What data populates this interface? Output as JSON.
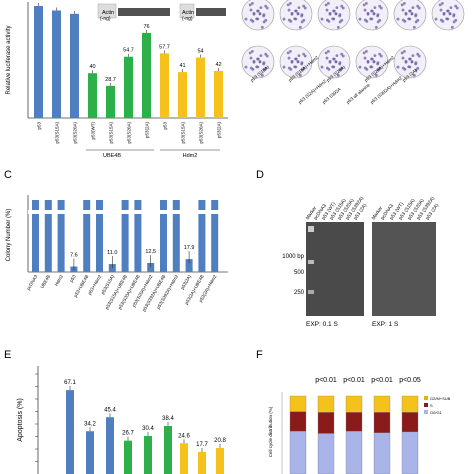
{
  "panel_letters": {
    "c": "C",
    "d": "D",
    "e": "E",
    "f": "F"
  },
  "panel_a": {
    "ylabel": "Relative luciferase activity",
    "blot_labels": [
      "Actin",
      "Actin"
    ],
    "blot_tags": [
      "(-ng)",
      "(-ng)"
    ],
    "group_labels": [
      "UBE4B",
      "Hdm2"
    ],
    "value_labels": [
      "40",
      "28.7",
      "54.7",
      "76",
      "57.7",
      "41",
      "54",
      "42"
    ]
  },
  "panel_b": {
    "captions": [
      "p53 (S15A)",
      "p53 (S15A)+Hdm2",
      "p53 (S20A)",
      "p53 (S20A)+Hdm2",
      "p53 (2A)",
      "p53 (S2A)+Hdm2",
      "p53 S392A",
      "p53 all alanine",
      "p53 (S392A)+Hdm2"
    ]
  },
  "panel_c": {
    "ylabel": "Colony Number (%)"
  },
  "panel_d": {
    "marker_labels": [
      "1000 bp",
      "500",
      "250"
    ],
    "exp_labels": [
      "EXP: 0.1 S",
      "EXP: 1 S"
    ],
    "lane_labels_left": [
      "Marker",
      "pcDNA3",
      "p53 (WT)",
      "p53 (S15A)",
      "p53 (S20A)",
      "p53 (S392A)",
      "p53 (2A)"
    ],
    "lane_labels_right": [
      "Marker",
      "pcDNA3",
      "p53 (WT)",
      "p53 (S15A)",
      "p53 (S20A)",
      "p53 (S392A)",
      "p53 (2A)"
    ]
  },
  "panel_e": {
    "ylabel": "Apoptosis (%)"
  },
  "panel_f": {
    "ylabel": "Cell cycle distribution (%)",
    "pvalues": [
      "p<0.01",
      "p<0.01",
      "p<0.01",
      "p<0.05"
    ],
    "legend": [
      "G2/M+SUB",
      "S",
      "G0/G1"
    ]
  },
  "colors": {
    "blue": "#4f7fc0",
    "green": "#2db04a",
    "yellow": "#f5c21b",
    "red": "#8b1a1a",
    "lavender": "#a9b4e8",
    "dark_yellow": "#e0b21a"
  },
  "chart_data": [
    {
      "panel": "A",
      "type": "bar",
      "ylabel": "Relative luciferase activity",
      "categories": [
        "p53",
        "p53(S15A)",
        "p53(S20A)",
        "p53(WT)",
        "p53(S15A)",
        "p53(S20A)",
        "p53(2A)",
        "p53",
        "p53(S15A)",
        "p53(S20A)",
        "p53(2A)"
      ],
      "values": [
        100,
        96,
        93,
        40,
        28.7,
        54.7,
        76,
        57.7,
        41,
        54,
        42
      ],
      "colors": [
        "blue",
        "blue",
        "blue",
        "green",
        "green",
        "green",
        "green",
        "yellow",
        "yellow",
        "yellow",
        "yellow"
      ],
      "data_labels": [
        "",
        "",
        "",
        "40",
        "28.7",
        "54.7",
        "76",
        "57.7",
        "41",
        "54",
        "42"
      ],
      "ylim": [
        0,
        100
      ]
    },
    {
      "panel": "C",
      "type": "bar",
      "ylabel": "Colony Number (%)",
      "categories": [
        "pcDNA3",
        "UBE4B",
        "Hdm2",
        "p53",
        "p53+UBE4B",
        "p53+Hdm2",
        "p53(S15A)",
        "p53(S15A)+UBE4B",
        "p53(S20A)+UBE4B",
        "p53(S20A)+Hdm2",
        "p53(S392A)+UBE4B",
        "p53(S392A)+Hdm2",
        "p53(2A)",
        "p53(2A)+UBE4B",
        "p53(2A)+Hdm2"
      ],
      "values": [
        100,
        100,
        100,
        7.6,
        100,
        100,
        11.0,
        100,
        100,
        12.5,
        100,
        100,
        17.9,
        100,
        100
      ],
      "data_labels": [
        "",
        "",
        "",
        "7.6",
        "",
        "",
        "11.0",
        "",
        "",
        "12.5",
        "",
        "",
        "17.9",
        "",
        ""
      ],
      "ylim": [
        0,
        100
      ]
    },
    {
      "panel": "E",
      "type": "bar",
      "ylabel": "Apoptosis (%)",
      "values": [
        67.1,
        34.2,
        45.4,
        26.7,
        30.4,
        38.4,
        24.6,
        17.7,
        20.8
      ],
      "colors": [
        "blue",
        "blue",
        "blue",
        "green",
        "green",
        "green",
        "yellow",
        "yellow",
        "yellow"
      ],
      "data_labels": [
        "67.1",
        "34.2",
        "45.4",
        "26.7",
        "30.4",
        "38.4",
        "24.6",
        "17.7",
        "20.8"
      ],
      "ylim": [
        0,
        80
      ]
    },
    {
      "panel": "F",
      "type": "bar",
      "stacked": true,
      "ylabel": "Cell cycle distribution (%)",
      "series": [
        {
          "name": "G0/G1",
          "values": [
            55,
            52,
            55,
            53,
            54
          ]
        },
        {
          "name": "S",
          "values": [
            25,
            27,
            24,
            26,
            25
          ]
        },
        {
          "name": "G2/M+SUB",
          "values": [
            20,
            21,
            21,
            21,
            21
          ]
        }
      ],
      "annotations": [
        "p<0.01",
        "p<0.01",
        "p<0.01",
        "p<0.05"
      ],
      "ylim": [
        0,
        100
      ]
    }
  ]
}
